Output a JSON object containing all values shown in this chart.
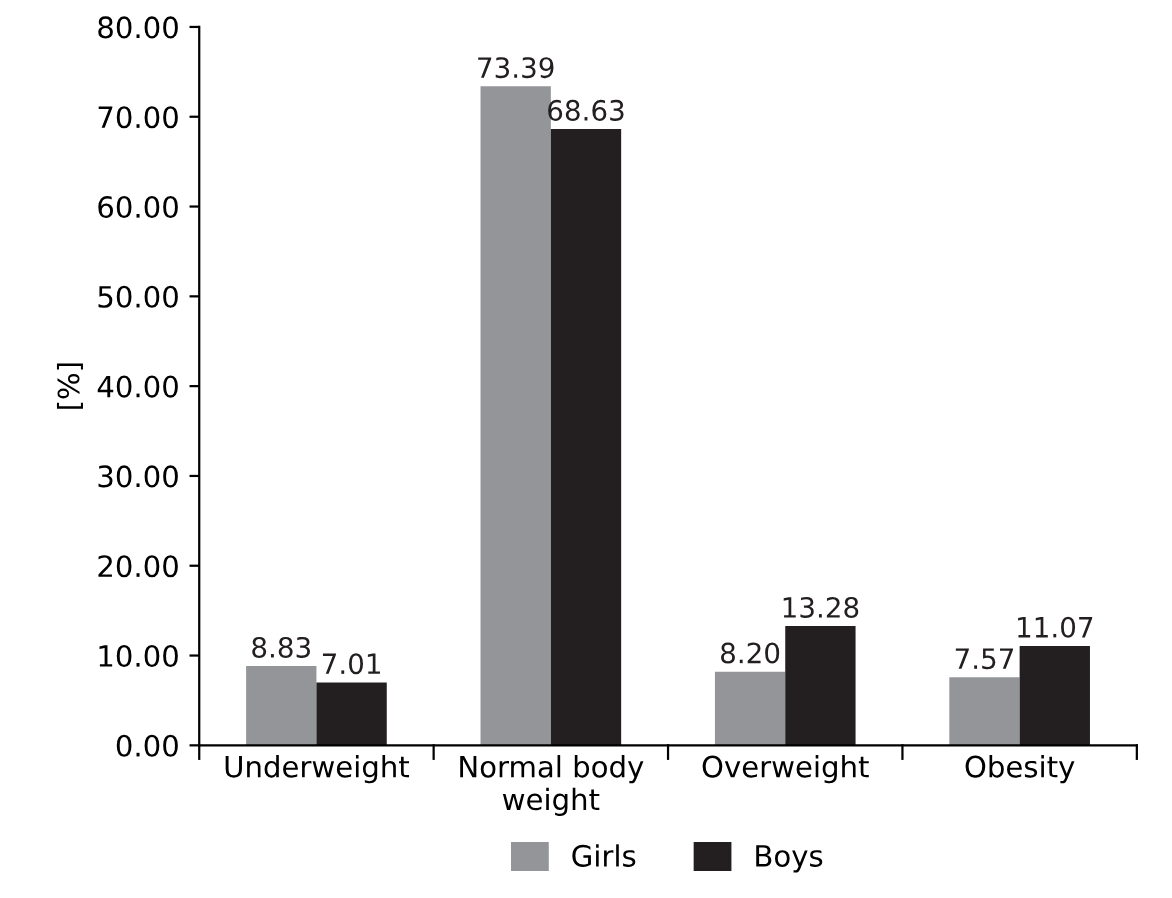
{
  "chart_data": {
    "type": "bar",
    "ylabel": "[%]",
    "categories": [
      "Underweight",
      "Normal body\nweight",
      "Overweight",
      "Obesity"
    ],
    "series": [
      {
        "name": "Girls",
        "color": "#939598",
        "values": [
          8.83,
          73.39,
          8.2,
          7.57
        ],
        "value_labels": [
          "8.83",
          "73.39",
          "8.20",
          "7.57"
        ]
      },
      {
        "name": "Boys",
        "color": "#231f20",
        "values": [
          7.01,
          68.63,
          13.28,
          11.07
        ],
        "value_labels": [
          "7.01",
          "68.63",
          "13.28",
          "11.07"
        ]
      }
    ],
    "ylim": [
      0,
      80
    ],
    "yticks": [
      {
        "value": 0,
        "label": "0.00"
      },
      {
        "value": 10,
        "label": "10.00"
      },
      {
        "value": 20,
        "label": "20.00"
      },
      {
        "value": 30,
        "label": "30.00"
      },
      {
        "value": 40,
        "label": "40.00"
      },
      {
        "value": 50,
        "label": "50.00"
      },
      {
        "value": 60,
        "label": "60.00"
      },
      {
        "value": 70,
        "label": "70.00"
      },
      {
        "value": 80,
        "label": "80.00"
      }
    ],
    "grid": false,
    "legend": "bottom"
  }
}
